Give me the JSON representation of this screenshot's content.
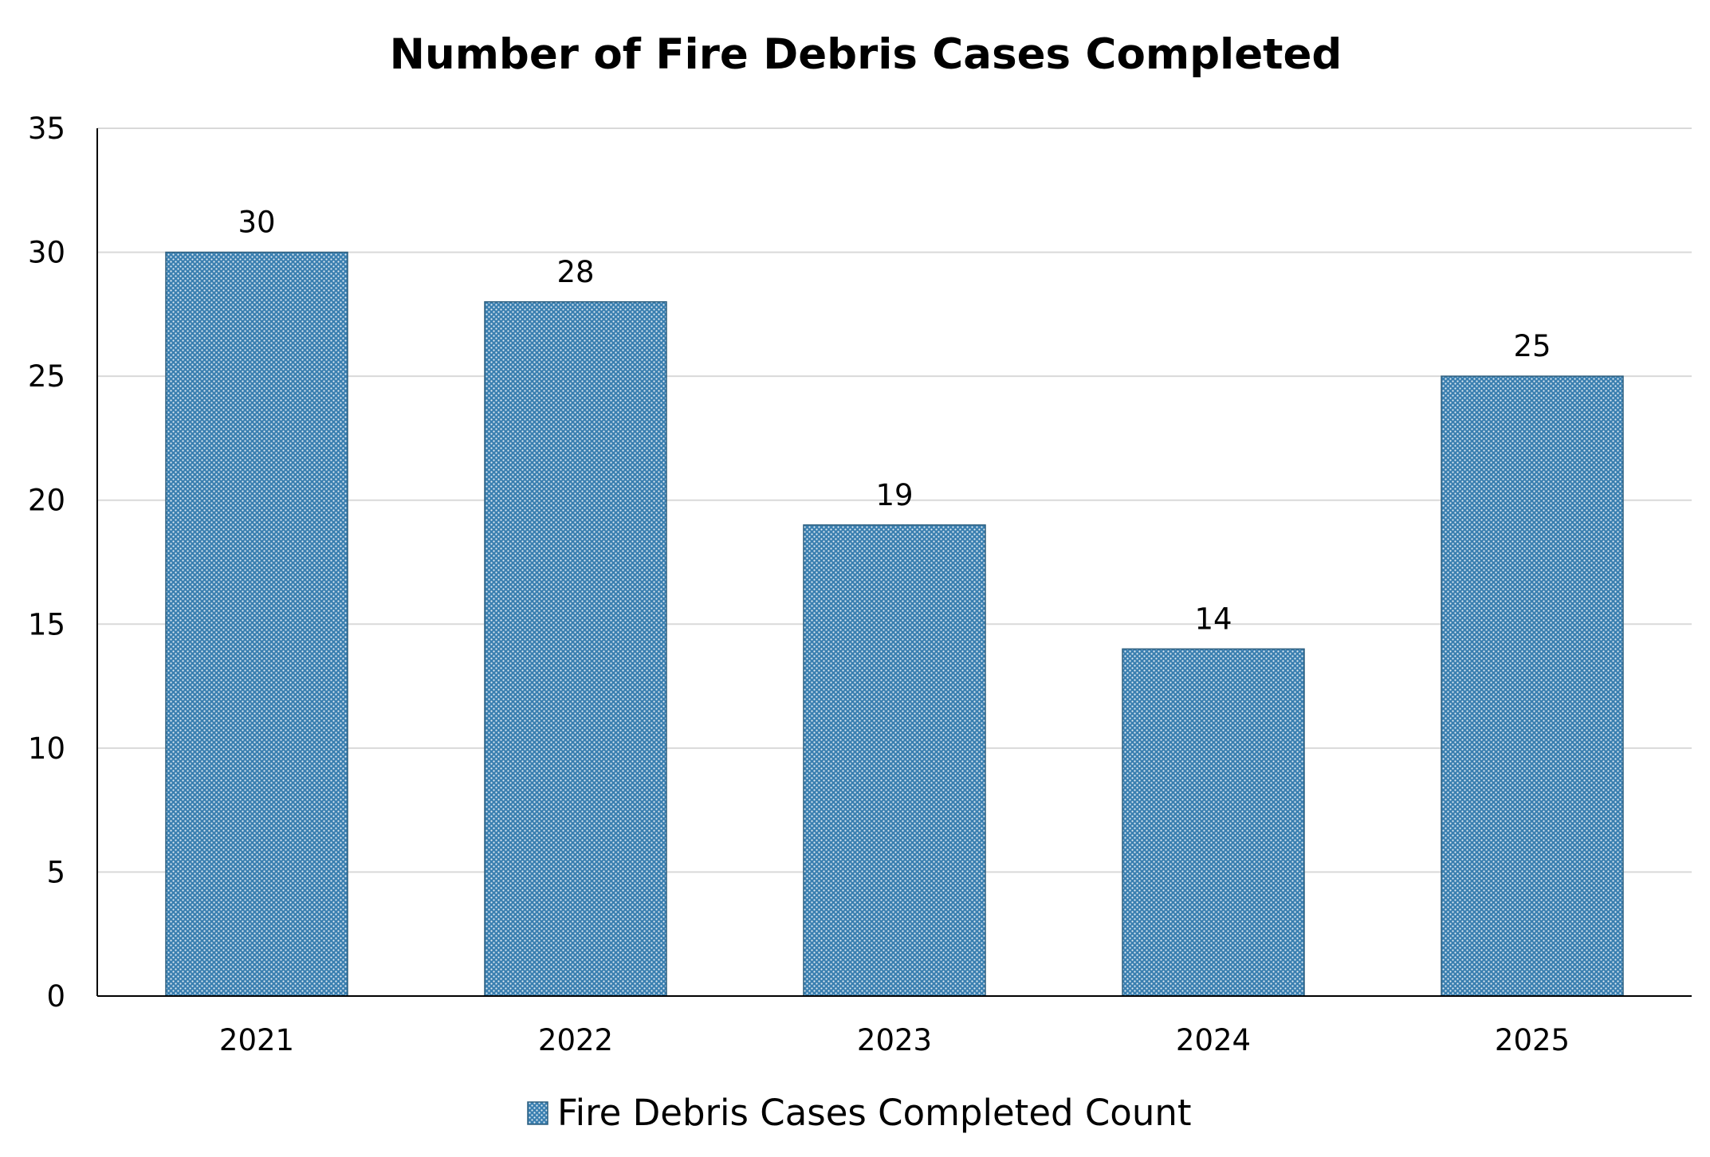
{
  "chart_data": {
    "type": "bar",
    "title": "Number of Fire Debris Cases Completed",
    "xlabel": "",
    "ylabel": "",
    "categories": [
      "2021",
      "2022",
      "2023",
      "2024",
      "2025"
    ],
    "series": [
      {
        "name": "Fire Debris Cases Completed Count",
        "values": [
          30,
          28,
          19,
          14,
          25
        ],
        "color": "#3a7fb0"
      }
    ],
    "ylim": [
      0,
      35
    ],
    "yticks": [
      0,
      5,
      10,
      15,
      20,
      25,
      30,
      35
    ],
    "grid": true,
    "legend": "bottom-center",
    "data_labels": true,
    "bar_fill": "dotted pattern"
  }
}
